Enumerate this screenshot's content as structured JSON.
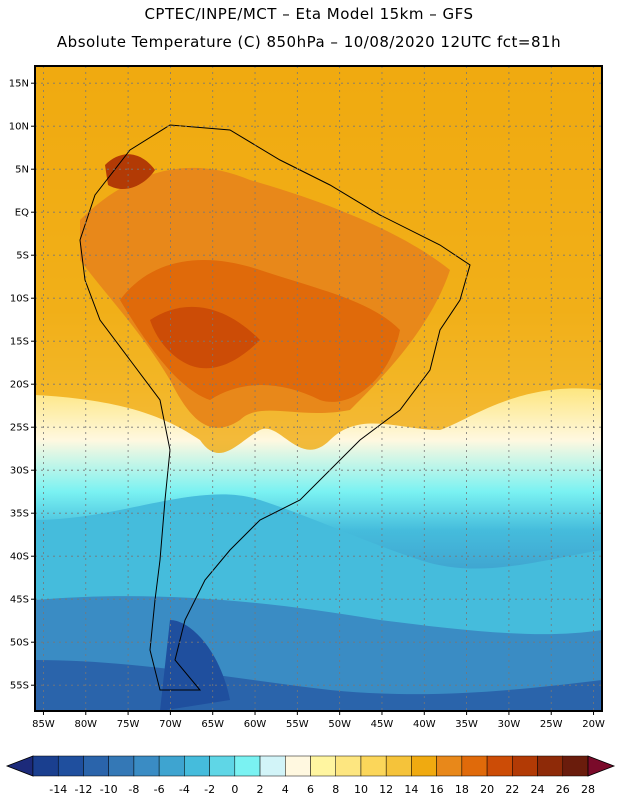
{
  "header": {
    "line1": "CPTEC/INPE/MCT –  Eta Model 15km – GFS",
    "line2": "Absolute Temperature (C) 850hPa – 10/08/2020 12UTC fct=81h"
  },
  "map": {
    "lon_range": [
      -86,
      -19
    ],
    "lat_range": [
      -58,
      17
    ],
    "lat_ticks": [
      {
        "v": 15,
        "label": "15N"
      },
      {
        "v": 10,
        "label": "10N"
      },
      {
        "v": 5,
        "label": "5N"
      },
      {
        "v": 0,
        "label": "EQ"
      },
      {
        "v": -5,
        "label": "5S"
      },
      {
        "v": -10,
        "label": "10S"
      },
      {
        "v": -15,
        "label": "15S"
      },
      {
        "v": -20,
        "label": "20S"
      },
      {
        "v": -25,
        "label": "25S"
      },
      {
        "v": -30,
        "label": "30S"
      },
      {
        "v": -35,
        "label": "35S"
      },
      {
        "v": -40,
        "label": "40S"
      },
      {
        "v": -45,
        "label": "45S"
      },
      {
        "v": -50,
        "label": "50S"
      },
      {
        "v": -55,
        "label": "55S"
      }
    ],
    "lon_ticks": [
      {
        "v": -85,
        "label": "85W"
      },
      {
        "v": -80,
        "label": "80W"
      },
      {
        "v": -75,
        "label": "75W"
      },
      {
        "v": -70,
        "label": "70W"
      },
      {
        "v": -65,
        "label": "65W"
      },
      {
        "v": -60,
        "label": "60W"
      },
      {
        "v": -55,
        "label": "55W"
      },
      {
        "v": -50,
        "label": "50W"
      },
      {
        "v": -45,
        "label": "45W"
      },
      {
        "v": -40,
        "label": "40W"
      },
      {
        "v": -35,
        "label": "35W"
      },
      {
        "v": -30,
        "label": "30W"
      },
      {
        "v": -25,
        "label": "25W"
      },
      {
        "v": -20,
        "label": "20W"
      }
    ],
    "grid": true
  },
  "colorbar": {
    "labels": [
      "-14",
      "-12",
      "-10",
      "-8",
      "-6",
      "-4",
      "-2",
      "0",
      "2",
      "4",
      "6",
      "8",
      "10",
      "12",
      "14",
      "16",
      "18",
      "20",
      "22",
      "24",
      "26",
      "28"
    ],
    "colors": [
      "#1a3f8f",
      "#1f4f9e",
      "#2a64ab",
      "#3478b6",
      "#3a8cc4",
      "#3ea4d0",
      "#45bcdc",
      "#5fd6e6",
      "#7af2f2",
      "#d2f4f8",
      "#fff8e0",
      "#fff5a0",
      "#fde680",
      "#fbd65a",
      "#f5c33a",
      "#f0aa10",
      "#e8881a",
      "#e06a0a",
      "#cc4c06",
      "#b23a05",
      "#8e2a08",
      "#6a1c0c"
    ],
    "low_arrow_color": "#1c2a7a",
    "high_arrow_color": "#7a0a2a"
  }
}
